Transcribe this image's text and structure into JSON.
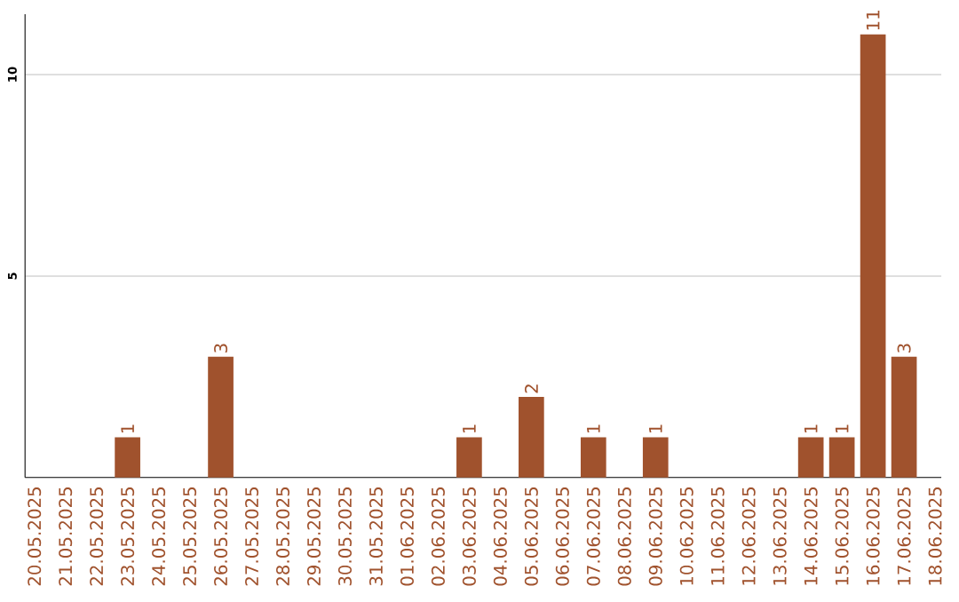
{
  "chart_data": {
    "type": "bar",
    "categories": [
      "20.05.2025",
      "21.05.2025",
      "22.05.2025",
      "23.05.2025",
      "24.05.2025",
      "25.05.2025",
      "26.05.2025",
      "27.05.2025",
      "28.05.2025",
      "29.05.2025",
      "30.05.2025",
      "31.05.2025",
      "01.06.2025",
      "02.06.2025",
      "03.06.2025",
      "04.06.2025",
      "05.06.2025",
      "06.06.2025",
      "07.06.2025",
      "08.06.2025",
      "09.06.2025",
      "10.06.2025",
      "11.06.2025",
      "12.06.2025",
      "13.06.2025",
      "14.06.2025",
      "15.06.2025",
      "16.06.2025",
      "17.06.2025",
      "18.06.2025"
    ],
    "values": [
      0,
      0,
      0,
      1,
      0,
      0,
      3,
      0,
      0,
      0,
      0,
      0,
      0,
      0,
      1,
      0,
      2,
      0,
      1,
      0,
      1,
      0,
      0,
      0,
      0,
      1,
      1,
      11,
      3,
      0
    ],
    "value_labels": [
      null,
      null,
      null,
      "1",
      null,
      null,
      "3",
      null,
      null,
      null,
      null,
      null,
      null,
      null,
      "1",
      null,
      "2",
      null,
      "1",
      null,
      "1",
      null,
      null,
      null,
      null,
      "1",
      "1",
      "11",
      "3",
      null
    ],
    "color": "#a0522d",
    "ylim": [
      0,
      11.5
    ],
    "yticks": [
      5,
      10
    ],
    "grid": "y"
  }
}
